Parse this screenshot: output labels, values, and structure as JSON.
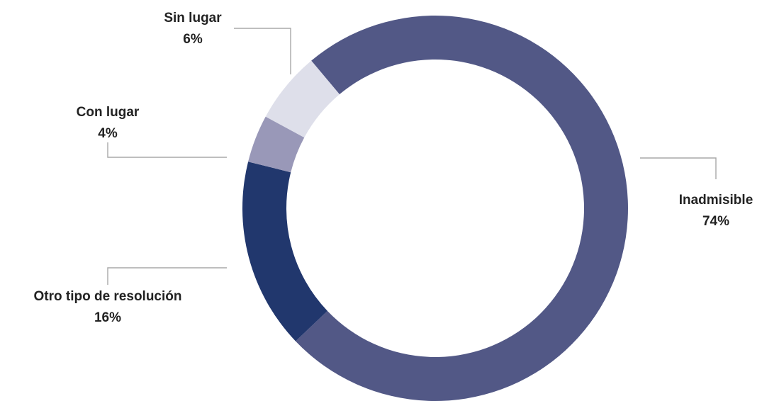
{
  "chart_data": {
    "type": "pie",
    "style": "donut",
    "title": "",
    "start_angle_deg": -40,
    "direction": "clockwise",
    "slices": [
      {
        "name": "Inadmisible",
        "value": 74,
        "label": "74%",
        "color": "#525886"
      },
      {
        "name": "Otro tipo de resolución",
        "value": 16,
        "label": "16%",
        "color": "#21376d"
      },
      {
        "name": "Con lugar",
        "value": 4,
        "label": "4%",
        "color": "#9998b8"
      },
      {
        "name": "Sin lugar",
        "value": 6,
        "label": "6%",
        "color": "#dedfea"
      }
    ]
  }
}
